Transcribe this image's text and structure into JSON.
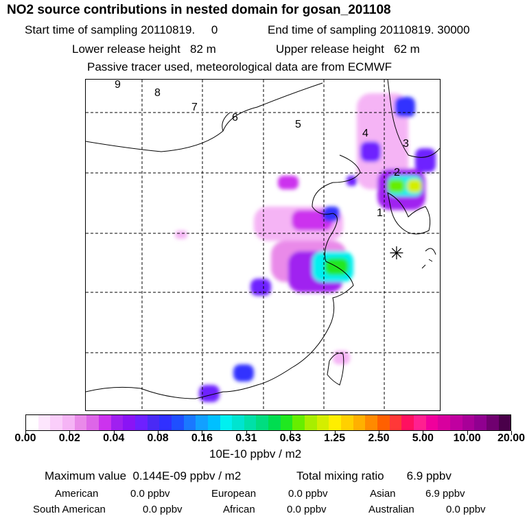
{
  "title": "NO2 source contributions in nested domain for gosan_201108",
  "header": {
    "start_time": "Start time of sampling 20110819.     0",
    "end_time": "End time of sampling 20110819. 30000",
    "lower_release": "Lower release height   82 m",
    "upper_release": "Upper release height   62 m",
    "tracer_note": "Passive tracer used, meteorological data are from ECMWF"
  },
  "map": {
    "sector_labels": [
      "1",
      "2",
      "3",
      "4",
      "5",
      "6",
      "7",
      "8",
      "9"
    ],
    "receptor_symbol": "✳"
  },
  "colorbar": {
    "labels": [
      "0.00",
      "0.02",
      "0.04",
      "0.08",
      "0.16",
      "0.31",
      "0.63",
      "1.25",
      "2.50",
      "5.00",
      "10.00",
      "20.00"
    ],
    "colors": [
      "#ffffff",
      "#fde6fd",
      "#facefa",
      "#f5b4f5",
      "#e98ae9",
      "#dd66e8",
      "#cc33ee",
      "#a020f0",
      "#8a14f5",
      "#6e20ff",
      "#4a2af5",
      "#3030ff",
      "#1f4fff",
      "#1a78ff",
      "#12a0ff",
      "#00c0ff",
      "#00f0f0",
      "#00e4d0",
      "#00e0a8",
      "#00dd80",
      "#00dd50",
      "#20e820",
      "#66ee00",
      "#a8ee00",
      "#d4ee00",
      "#ffee00",
      "#ffd000",
      "#ffb000",
      "#ff8a00",
      "#ff6000",
      "#ff3838",
      "#ff1060",
      "#ff2090",
      "#f0009c",
      "#d8009e",
      "#c000a0",
      "#a80098",
      "#900090",
      "#700070",
      "#4a004a"
    ],
    "units": "10E-10 ppbv / m2"
  },
  "stats": {
    "max_value": "Maximum value  0.144E-09 ppbv / m2",
    "total_mixing": "Total mixing ratio       6.9 ppbv",
    "regions": [
      {
        "name": "American",
        "value": "0.0 ppbv"
      },
      {
        "name": "European",
        "value": "0.0 ppbv"
      },
      {
        "name": "Asian",
        "value": "6.9 ppbv"
      },
      {
        "name": "South American",
        "value": "0.0 ppbv"
      },
      {
        "name": "African",
        "value": "0.0 ppbv"
      },
      {
        "name": "Australian",
        "value": "0.0 ppbv"
      }
    ]
  }
}
